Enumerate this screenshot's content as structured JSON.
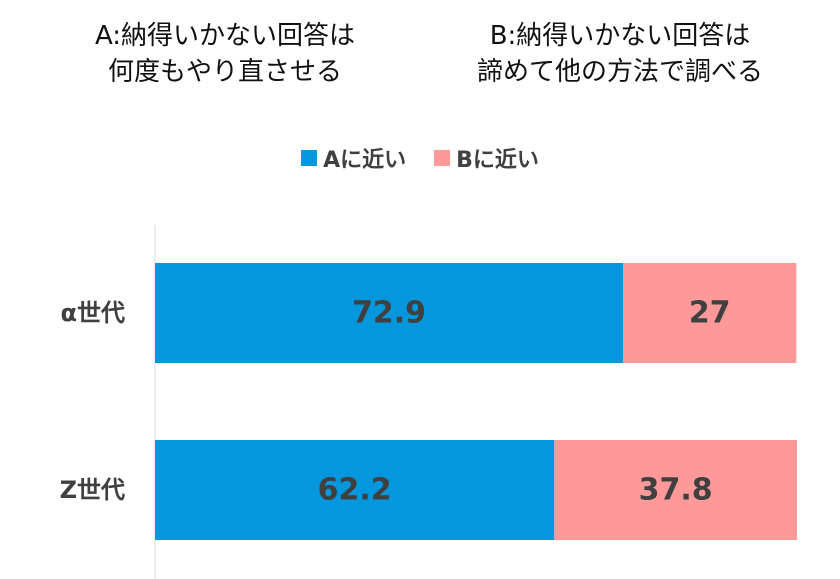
{
  "captions": {
    "a": [
      "A:納得いかない回答は",
      "何度もやり直させる"
    ],
    "b": [
      "B:納得いかない回答は",
      "諦めて他の方法で調べる"
    ]
  },
  "chart_data": {
    "type": "bar",
    "orientation": "horizontal",
    "stacked": true,
    "categories": [
      "α世代",
      "Z世代"
    ],
    "series": [
      {
        "name": "Aに近い",
        "values": [
          72.9,
          62.2
        ],
        "color": "#0597dd"
      },
      {
        "name": "Bに近い",
        "values": [
          27,
          37.8
        ],
        "color": "#fe9999"
      }
    ],
    "xlim": [
      0,
      100
    ],
    "grid": false,
    "legend_position": "top-center"
  }
}
